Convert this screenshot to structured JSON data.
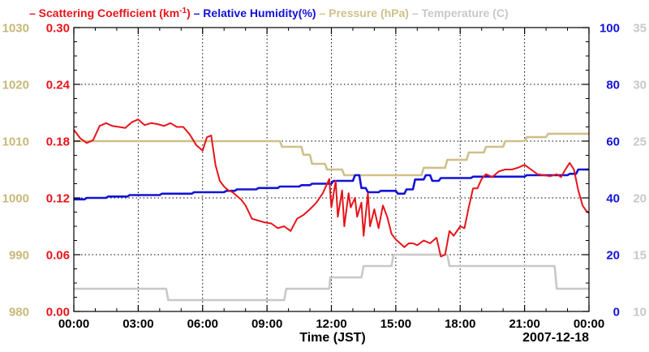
{
  "chart_data": {
    "type": "line",
    "date_label": "2007-12-18",
    "xlabel": "Time (JST)",
    "xlim": [
      0,
      24
    ],
    "x_ticks": [
      0,
      3,
      6,
      9,
      12,
      15,
      18,
      21,
      24
    ],
    "x_tick_labels": [
      "00:00",
      "03:00",
      "06:00",
      "09:00",
      "12:00",
      "15:00",
      "18:00",
      "21:00",
      "00:00"
    ],
    "legend": [
      {
        "id": "scat",
        "prefix": "–",
        "label": "Scattering Coefficient (km",
        "superscript": "-1",
        "suffix": ")",
        "color": "#e8141b"
      },
      {
        "id": "rh",
        "prefix": "–",
        "label": "Relative Humidity(%)",
        "color": "#1212d8"
      },
      {
        "id": "pres",
        "prefix": "–",
        "label": "Pressure (hPa)",
        "color": "#cfc08a"
      },
      {
        "id": "temp",
        "prefix": "–",
        "label": "Temperature (C)",
        "color": "#c8c8c8"
      }
    ],
    "axes": {
      "scat": {
        "side": "left-inner",
        "ylim": [
          0,
          0.3
        ],
        "ticks": [
          "0.00",
          "0.06",
          "0.12",
          "0.18",
          "0.24",
          "0.30"
        ],
        "color": "#e8141b"
      },
      "pres": {
        "side": "left-outer",
        "ylim": [
          980,
          1030
        ],
        "ticks": [
          "980",
          "990",
          "1000",
          "1010",
          "1020",
          "1030"
        ],
        "color": "#c8b878"
      },
      "rh": {
        "side": "right-inner",
        "ylim": [
          0,
          100
        ],
        "ticks": [
          "0",
          "20",
          "40",
          "60",
          "80",
          "100"
        ],
        "color": "#1212d8"
      },
      "temp": {
        "side": "right-outer",
        "ylim": [
          10,
          35
        ],
        "ticks": [
          "10",
          "15",
          "20",
          "25",
          "30",
          "35"
        ],
        "color": "#c8c8c8"
      }
    },
    "series": [
      {
        "name": "Scattering Coefficient",
        "axis": "scat",
        "x": [
          0,
          0.3,
          0.6,
          0.9,
          1.2,
          1.5,
          1.8,
          2.1,
          2.4,
          2.7,
          3.0,
          3.3,
          3.6,
          3.9,
          4.2,
          4.5,
          4.8,
          5.1,
          5.4,
          5.7,
          6.0,
          6.2,
          6.4,
          6.6,
          6.8,
          7.0,
          7.2,
          7.4,
          7.6,
          7.8,
          8.0,
          8.3,
          8.6,
          8.9,
          9.2,
          9.5,
          9.8,
          10.1,
          10.4,
          10.7,
          11.0,
          11.3,
          11.6,
          11.9,
          12.0,
          12.2,
          12.3,
          12.5,
          12.6,
          12.8,
          12.9,
          13.1,
          13.2,
          13.4,
          13.5,
          13.7,
          13.8,
          14.0,
          14.2,
          14.4,
          14.6,
          14.8,
          15.0,
          15.2,
          15.4,
          15.6,
          15.8,
          16.0,
          16.3,
          16.6,
          16.9,
          17.1,
          17.3,
          17.5,
          17.7,
          18.0,
          18.2,
          18.4,
          18.6,
          18.8,
          19.0,
          19.2,
          19.5,
          19.8,
          20.1,
          20.4,
          20.7,
          21.0,
          21.3,
          21.6,
          21.9,
          22.2,
          22.5,
          22.7,
          22.9,
          23.1,
          23.3,
          23.5,
          23.7,
          23.85,
          24.0
        ],
        "y": [
          0.192,
          0.183,
          0.178,
          0.181,
          0.196,
          0.199,
          0.196,
          0.195,
          0.194,
          0.2,
          0.203,
          0.197,
          0.199,
          0.198,
          0.196,
          0.199,
          0.195,
          0.195,
          0.187,
          0.176,
          0.17,
          0.184,
          0.186,
          0.155,
          0.138,
          0.132,
          0.128,
          0.126,
          0.122,
          0.118,
          0.112,
          0.098,
          0.096,
          0.094,
          0.093,
          0.088,
          0.09,
          0.085,
          0.098,
          0.102,
          0.108,
          0.115,
          0.125,
          0.14,
          0.11,
          0.138,
          0.1,
          0.128,
          0.09,
          0.125,
          0.11,
          0.12,
          0.1,
          0.115,
          0.08,
          0.125,
          0.09,
          0.108,
          0.088,
          0.112,
          0.1,
          0.082,
          0.076,
          0.072,
          0.068,
          0.072,
          0.072,
          0.07,
          0.075,
          0.072,
          0.078,
          0.058,
          0.06,
          0.085,
          0.08,
          0.09,
          0.088,
          0.11,
          0.13,
          0.13,
          0.14,
          0.145,
          0.142,
          0.148,
          0.15,
          0.15,
          0.152,
          0.155,
          0.15,
          0.145,
          0.144,
          0.143,
          0.145,
          0.142,
          0.15,
          0.157,
          0.15,
          0.128,
          0.112,
          0.107,
          0.104
        ]
      },
      {
        "name": "Relative Humidity(%)",
        "axis": "rh",
        "x": [
          0,
          0.5,
          0.6,
          1.5,
          1.6,
          2.5,
          2.6,
          4.0,
          4.1,
          5.5,
          5.6,
          7.0,
          7.1,
          7.5,
          7.6,
          8.5,
          8.6,
          9.5,
          9.6,
          10.5,
          10.6,
          11.0,
          11.1,
          12.0,
          12.1,
          13.0,
          13.1,
          13.3,
          13.4,
          13.6,
          13.7,
          14.2,
          14.3,
          15.0,
          15.1,
          15.4,
          15.5,
          15.8,
          15.9,
          16.3,
          16.4,
          16.6,
          16.7,
          17.0,
          17.1,
          18.5,
          18.6,
          21.0,
          21.1,
          23.0,
          23.1,
          23.4,
          23.5,
          24.0
        ],
        "y": [
          39.5,
          39.5,
          40.0,
          40.0,
          40.5,
          40.5,
          41.0,
          41.0,
          41.5,
          41.5,
          42.0,
          42.0,
          42.5,
          42.5,
          43.0,
          43.0,
          43.5,
          43.5,
          44.0,
          44.0,
          44.5,
          44.5,
          45.0,
          45.0,
          46.0,
          46.0,
          48.0,
          48.0,
          43.5,
          43.5,
          42.0,
          42.0,
          42.5,
          42.5,
          41.5,
          41.5,
          43.0,
          43.0,
          46.5,
          46.5,
          48.0,
          48.0,
          46.0,
          46.0,
          47.0,
          47.0,
          47.5,
          47.5,
          48.0,
          48.0,
          48.5,
          48.5,
          50.0,
          50.0
        ]
      },
      {
        "name": "Pressure (hPa)",
        "axis": "pres",
        "x": [
          0,
          8.3,
          8.4,
          9.6,
          9.7,
          10.6,
          10.7,
          11.0,
          11.1,
          11.7,
          11.8,
          12.5,
          12.6,
          13.3,
          13.4,
          16.2,
          16.3,
          17.3,
          17.4,
          18.3,
          18.4,
          19.1,
          19.2,
          20.0,
          20.1,
          21.0,
          21.1,
          22.0,
          22.1,
          24.0
        ],
        "y": [
          1010.0,
          1010.0,
          1010.0,
          1010.0,
          1009.0,
          1009.0,
          1007.6,
          1007.6,
          1006.0,
          1006.0,
          1005.0,
          1005.0,
          1004.0,
          1004.0,
          1004.0,
          1004.0,
          1005.3,
          1005.3,
          1006.7,
          1006.7,
          1008.0,
          1008.0,
          1009.0,
          1009.0,
          1010.0,
          1010.0,
          1010.7,
          1010.7,
          1011.3,
          1011.3
        ]
      },
      {
        "name": "Temperature (C)",
        "axis": "temp",
        "x": [
          0,
          4.3,
          4.4,
          9.8,
          9.9,
          11.9,
          11.95,
          13.4,
          13.5,
          14.8,
          14.9,
          17.4,
          17.5,
          22.4,
          22.5,
          24.0
        ],
        "y": [
          12.0,
          12.0,
          11.0,
          11.0,
          12.0,
          12.0,
          13.0,
          13.0,
          14.0,
          14.0,
          15.0,
          15.0,
          14.0,
          14.0,
          12.0,
          12.0
        ]
      }
    ],
    "grid": true
  }
}
